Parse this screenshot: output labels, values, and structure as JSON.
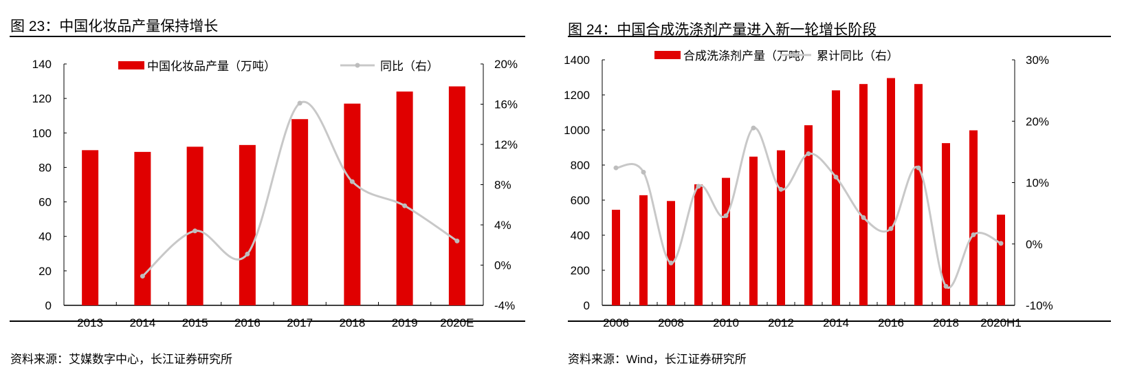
{
  "chart_data": [
    {
      "type": "bar+line",
      "title": "图 23：中国化妆品产量保持增长",
      "source": "资料来源：艾媒数字中心，长江证券研究所",
      "categories": [
        "2013",
        "2014",
        "2015",
        "2016",
        "2017",
        "2018",
        "2019",
        "2020E"
      ],
      "series": [
        {
          "name": "中国化妆品产量（万吨）",
          "axis": "left",
          "type": "bar",
          "color": "#E00000",
          "values": [
            90,
            89,
            92,
            93,
            108,
            117,
            124,
            127
          ]
        },
        {
          "name": "同比（右）",
          "axis": "right",
          "type": "line",
          "color": "#C8C8C8",
          "values": [
            null,
            -1.1,
            3.4,
            1.1,
            16.1,
            8.3,
            5.9,
            2.4
          ]
        }
      ],
      "y_left": {
        "range": [
          0,
          140
        ],
        "ticks": [
          "0",
          "20",
          "40",
          "60",
          "80",
          "100",
          "120",
          "140"
        ]
      },
      "y_right": {
        "range": [
          -4,
          20
        ],
        "unit": "%",
        "ticks": [
          "-4%",
          "0%",
          "4%",
          "8%",
          "12%",
          "16%",
          "20%"
        ]
      },
      "x_tick_labels": [
        "2013",
        "2014",
        "2015",
        "2016",
        "2017",
        "2018",
        "2019",
        "2020E"
      ],
      "legend": "top",
      "grid": false
    },
    {
      "type": "bar+line",
      "title": "图 24：中国合成洗涤剂产量进入新一轮增长阶段",
      "source": "资料来源：Wind，长江证券研究所",
      "categories": [
        "2006",
        "2007",
        "2008",
        "2009",
        "2010",
        "2011",
        "2012",
        "2013",
        "2014",
        "2015",
        "2016",
        "2017",
        "2018",
        "2019",
        "2020H1"
      ],
      "series": [
        {
          "name": "合成洗涤剂产量（万吨）",
          "axis": "left",
          "type": "bar",
          "color": "#E00000",
          "values": [
            545,
            628,
            595,
            690,
            727,
            848,
            884,
            1027,
            1226,
            1262,
            1296,
            1262,
            925,
            998,
            517
          ]
        },
        {
          "name": "累计同比（右）",
          "axis": "right",
          "type": "line",
          "color": "#C8C8C8",
          "values": [
            12.4,
            11.7,
            -3.1,
            9.4,
            4.6,
            18.9,
            8.9,
            14.7,
            10.9,
            4.3,
            2.5,
            12.4,
            -6.9,
            1.5,
            0.1
          ]
        }
      ],
      "y_left": {
        "range": [
          0,
          1400
        ],
        "ticks": [
          "0",
          "200",
          "400",
          "600",
          "800",
          "1000",
          "1200",
          "1400"
        ]
      },
      "y_right": {
        "range": [
          -10,
          30
        ],
        "unit": "%",
        "ticks": [
          "-10%",
          "0%",
          "10%",
          "20%",
          "30%"
        ]
      },
      "x_tick_labels": [
        "2006",
        "2008",
        "2010",
        "2012",
        "2014",
        "2016",
        "2018",
        "2020H1"
      ],
      "legend": "top",
      "grid": false
    }
  ]
}
